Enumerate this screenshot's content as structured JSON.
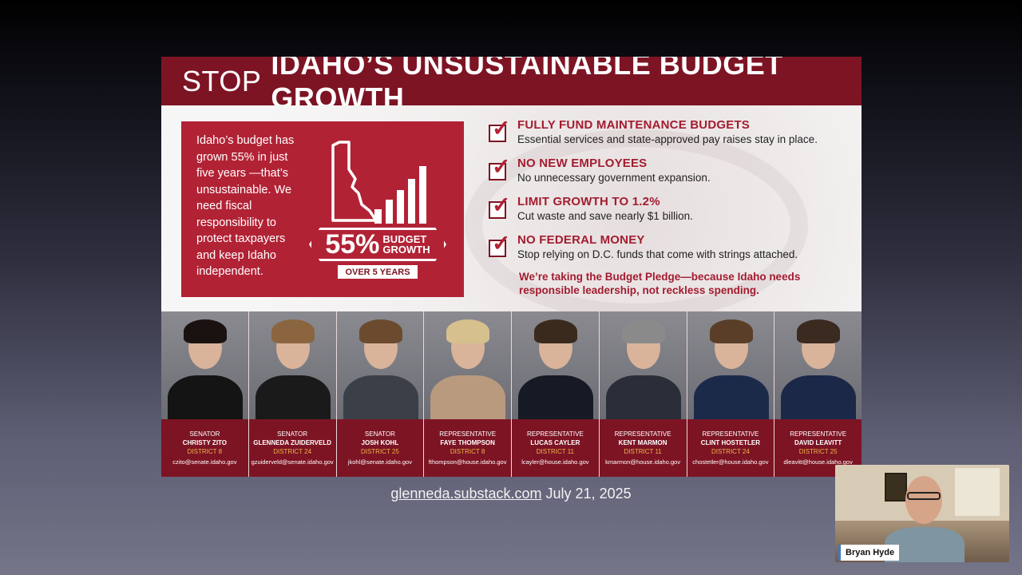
{
  "slide": {
    "header_light": "STOP",
    "header_bold": "IDAHO’S UNSUSTAINABLE BUDGET GROWTH",
    "intro_text": "Idaho’s budget has grown 55% in just five years —that’s unsustainable. We need fiscal responsibility to protect taxpayers and keep Idaho independent.",
    "badge": {
      "percent": "55%",
      "label_line1": "BUDGET",
      "label_line2": "GROWTH",
      "sub": "OVER 5 YEARS"
    },
    "pledge_items": [
      {
        "title": "FULLY FUND MAINTENANCE BUDGETS",
        "desc": "Essential services and state-approved pay raises stay in place."
      },
      {
        "title": "NO NEW EMPLOYEES",
        "desc": "No unnecessary government expansion."
      },
      {
        "title": "LIMIT GROWTH TO 1.2%",
        "desc": "Cut waste and save nearly $1 billion."
      },
      {
        "title": "NO FEDERAL MONEY",
        "desc": "Stop relying on D.C. funds that come with strings attached."
      }
    ],
    "closing": "We’re taking the Budget Pledge—because Idaho needs responsible leadership, not reckless spending.",
    "people": [
      {
        "title": "Senator",
        "name": "CHRISTY ZITO",
        "district": "DISTRICT 8",
        "email": "czito@senate.idaho.gov",
        "hair": "#1a1210",
        "suit": "#141414"
      },
      {
        "title": "Senator",
        "name": "GLENNEDA ZUIDERVELD",
        "district": "DISTRICT 24",
        "email": "gzuiderveld@senate.idaho.gov",
        "hair": "#8a6540",
        "suit": "#1a1a1a"
      },
      {
        "title": "Senator",
        "name": "JOSH KOHL",
        "district": "DISTRICT 25",
        "email": "jkohl@senate.idaho.gov",
        "hair": "#6b4a2e",
        "suit": "#3a3f48"
      },
      {
        "title": "Representative",
        "name": "FAYE THOMPSON",
        "district": "DISTRICT 8",
        "email": "fthompson@house.idaho.gov",
        "hair": "#d6c08e",
        "suit": "#b99a7e"
      },
      {
        "title": "Representative",
        "name": "LUCAS CAYLER",
        "district": "DISTRICT 11",
        "email": "lcayler@house.idaho.gov",
        "hair": "#3a2a1e",
        "suit": "#151a24"
      },
      {
        "title": "Representative",
        "name": "KENT MARMON",
        "district": "DISTRICT 11",
        "email": "kmarmon@house.idaho.gov",
        "hair": "#8a8a8a",
        "suit": "#2a2e38"
      },
      {
        "title": "Representative",
        "name": "CLINT HOSTETLER",
        "district": "DISTRICT 24",
        "email": "chostetler@house.idaho.gov",
        "hair": "#5a3e28",
        "suit": "#1c2a4a"
      },
      {
        "title": "Representative",
        "name": "DAVID LEAVITT",
        "district": "DISTRICT 25",
        "email": "dleavitt@house.idaho.gov",
        "hair": "#3a2a20",
        "suit": "#1c2848"
      }
    ]
  },
  "caption": {
    "link": "glenneda.substack.com",
    "date": "July 21, 2025"
  },
  "webcam": {
    "participant_name": "Bryan Hyde"
  },
  "colors": {
    "maroon": "#7d1424",
    "red": "#b22235",
    "gold": "#f0b44c"
  }
}
